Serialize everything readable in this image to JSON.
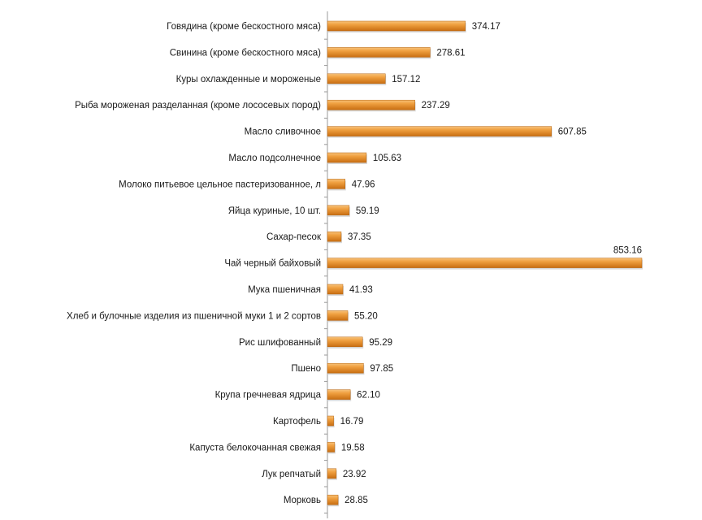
{
  "chart_data": {
    "type": "bar",
    "orientation": "horizontal",
    "title": "",
    "xlabel": "",
    "ylabel": "",
    "xlim": [
      0,
      853.16
    ],
    "grid": false,
    "legend": "none",
    "bar_color": "#e8922a",
    "categories": [
      "Говядина (кроме бескостного мяса)",
      "Свинина (кроме бескостного мяса)",
      "Куры охлажденные и мороженые",
      "Рыба мороженая разделанная (кроме лососевых пород)",
      "Масло сливочное",
      "Масло подсолнечное",
      "Молоко питьевое цельное пастеризованное, л",
      "Яйца куриные, 10 шт.",
      "Сахар-песок",
      "Чай черный байховый",
      "Мука пшеничная",
      "Хлеб и булочные изделия из пшеничной муки 1 и 2 сортов",
      "Рис шлифованный",
      "Пшено",
      "Крупа гречневая ядрица",
      "Картофель",
      "Капуста белокочанная свежая",
      "Лук репчатый",
      "Морковь"
    ],
    "values": [
      374.17,
      278.61,
      157.12,
      237.29,
      607.85,
      105.63,
      47.96,
      59.19,
      37.35,
      853.16,
      41.93,
      55.2,
      95.29,
      97.85,
      62.1,
      16.79,
      19.58,
      23.92,
      28.85
    ],
    "value_labels": [
      "374.17",
      "278.61",
      "157.12",
      "237.29",
      "607.85",
      "105.63",
      "47.96",
      "59.19",
      "37.35",
      "853.16",
      "41.93",
      "55.20",
      "95.29",
      "97.85",
      "62.10",
      "16.79",
      "19.58",
      "23.92",
      "28.85"
    ]
  }
}
